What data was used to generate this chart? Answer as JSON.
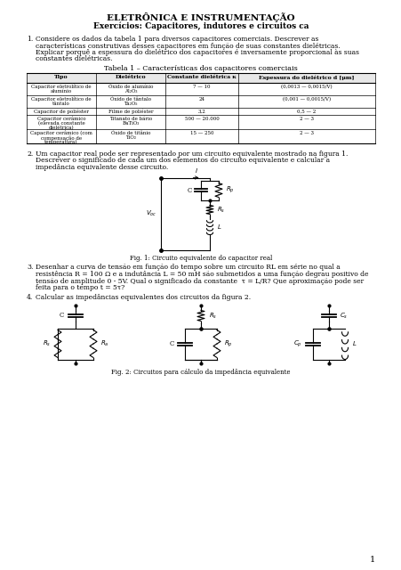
{
  "title1": "ELETRÔNICA E INSTRUMENTAÇÃO",
  "title2": "Exercícios: Capacitores, indutores e circuitos ca",
  "table_title": "Tabela 1 – Características dos capacitores comerciais",
  "table_headers": [
    "Tipo",
    "Dielétrico",
    "Constante dielétrica κ",
    "Espessura do dielétrico d [μm]"
  ],
  "table_rows": [
    [
      "Capacitor eletrolítico de\nalumínio",
      "Óxido de alumínio\nAl₂O₃",
      "7 — 10",
      "(0,0013 — 0,0015/V)"
    ],
    [
      "Capacitor eletrolítico de\ntântalo",
      "Óxido de tântalo\nTa₂O₅",
      "24",
      "(0,001 — 0,0015/V)"
    ],
    [
      "Capacitor de poliéster",
      "Filme de poliéster",
      "3,2",
      "0,5 — 2"
    ],
    [
      "Capacitor cerâmico\n(elevada constante\ndielétrica)",
      "Titanato de bário\nBaTiO₃",
      "500 — 20.000",
      "2 — 3"
    ],
    [
      "Capacitor cerâmico (com\ncompensação de\ntemperatura)",
      "Óxido de titânio\nTiO₂",
      "15 — 250",
      "2 — 3"
    ]
  ],
  "fig1_caption": "Fig. 1: Circuito equivalente do capacitor real",
  "fig2_caption": "Fig. 2: Circuitos para cálculo da impedância equivalente",
  "page_num": "1",
  "bg_color": "#ffffff",
  "text_color": "#000000"
}
